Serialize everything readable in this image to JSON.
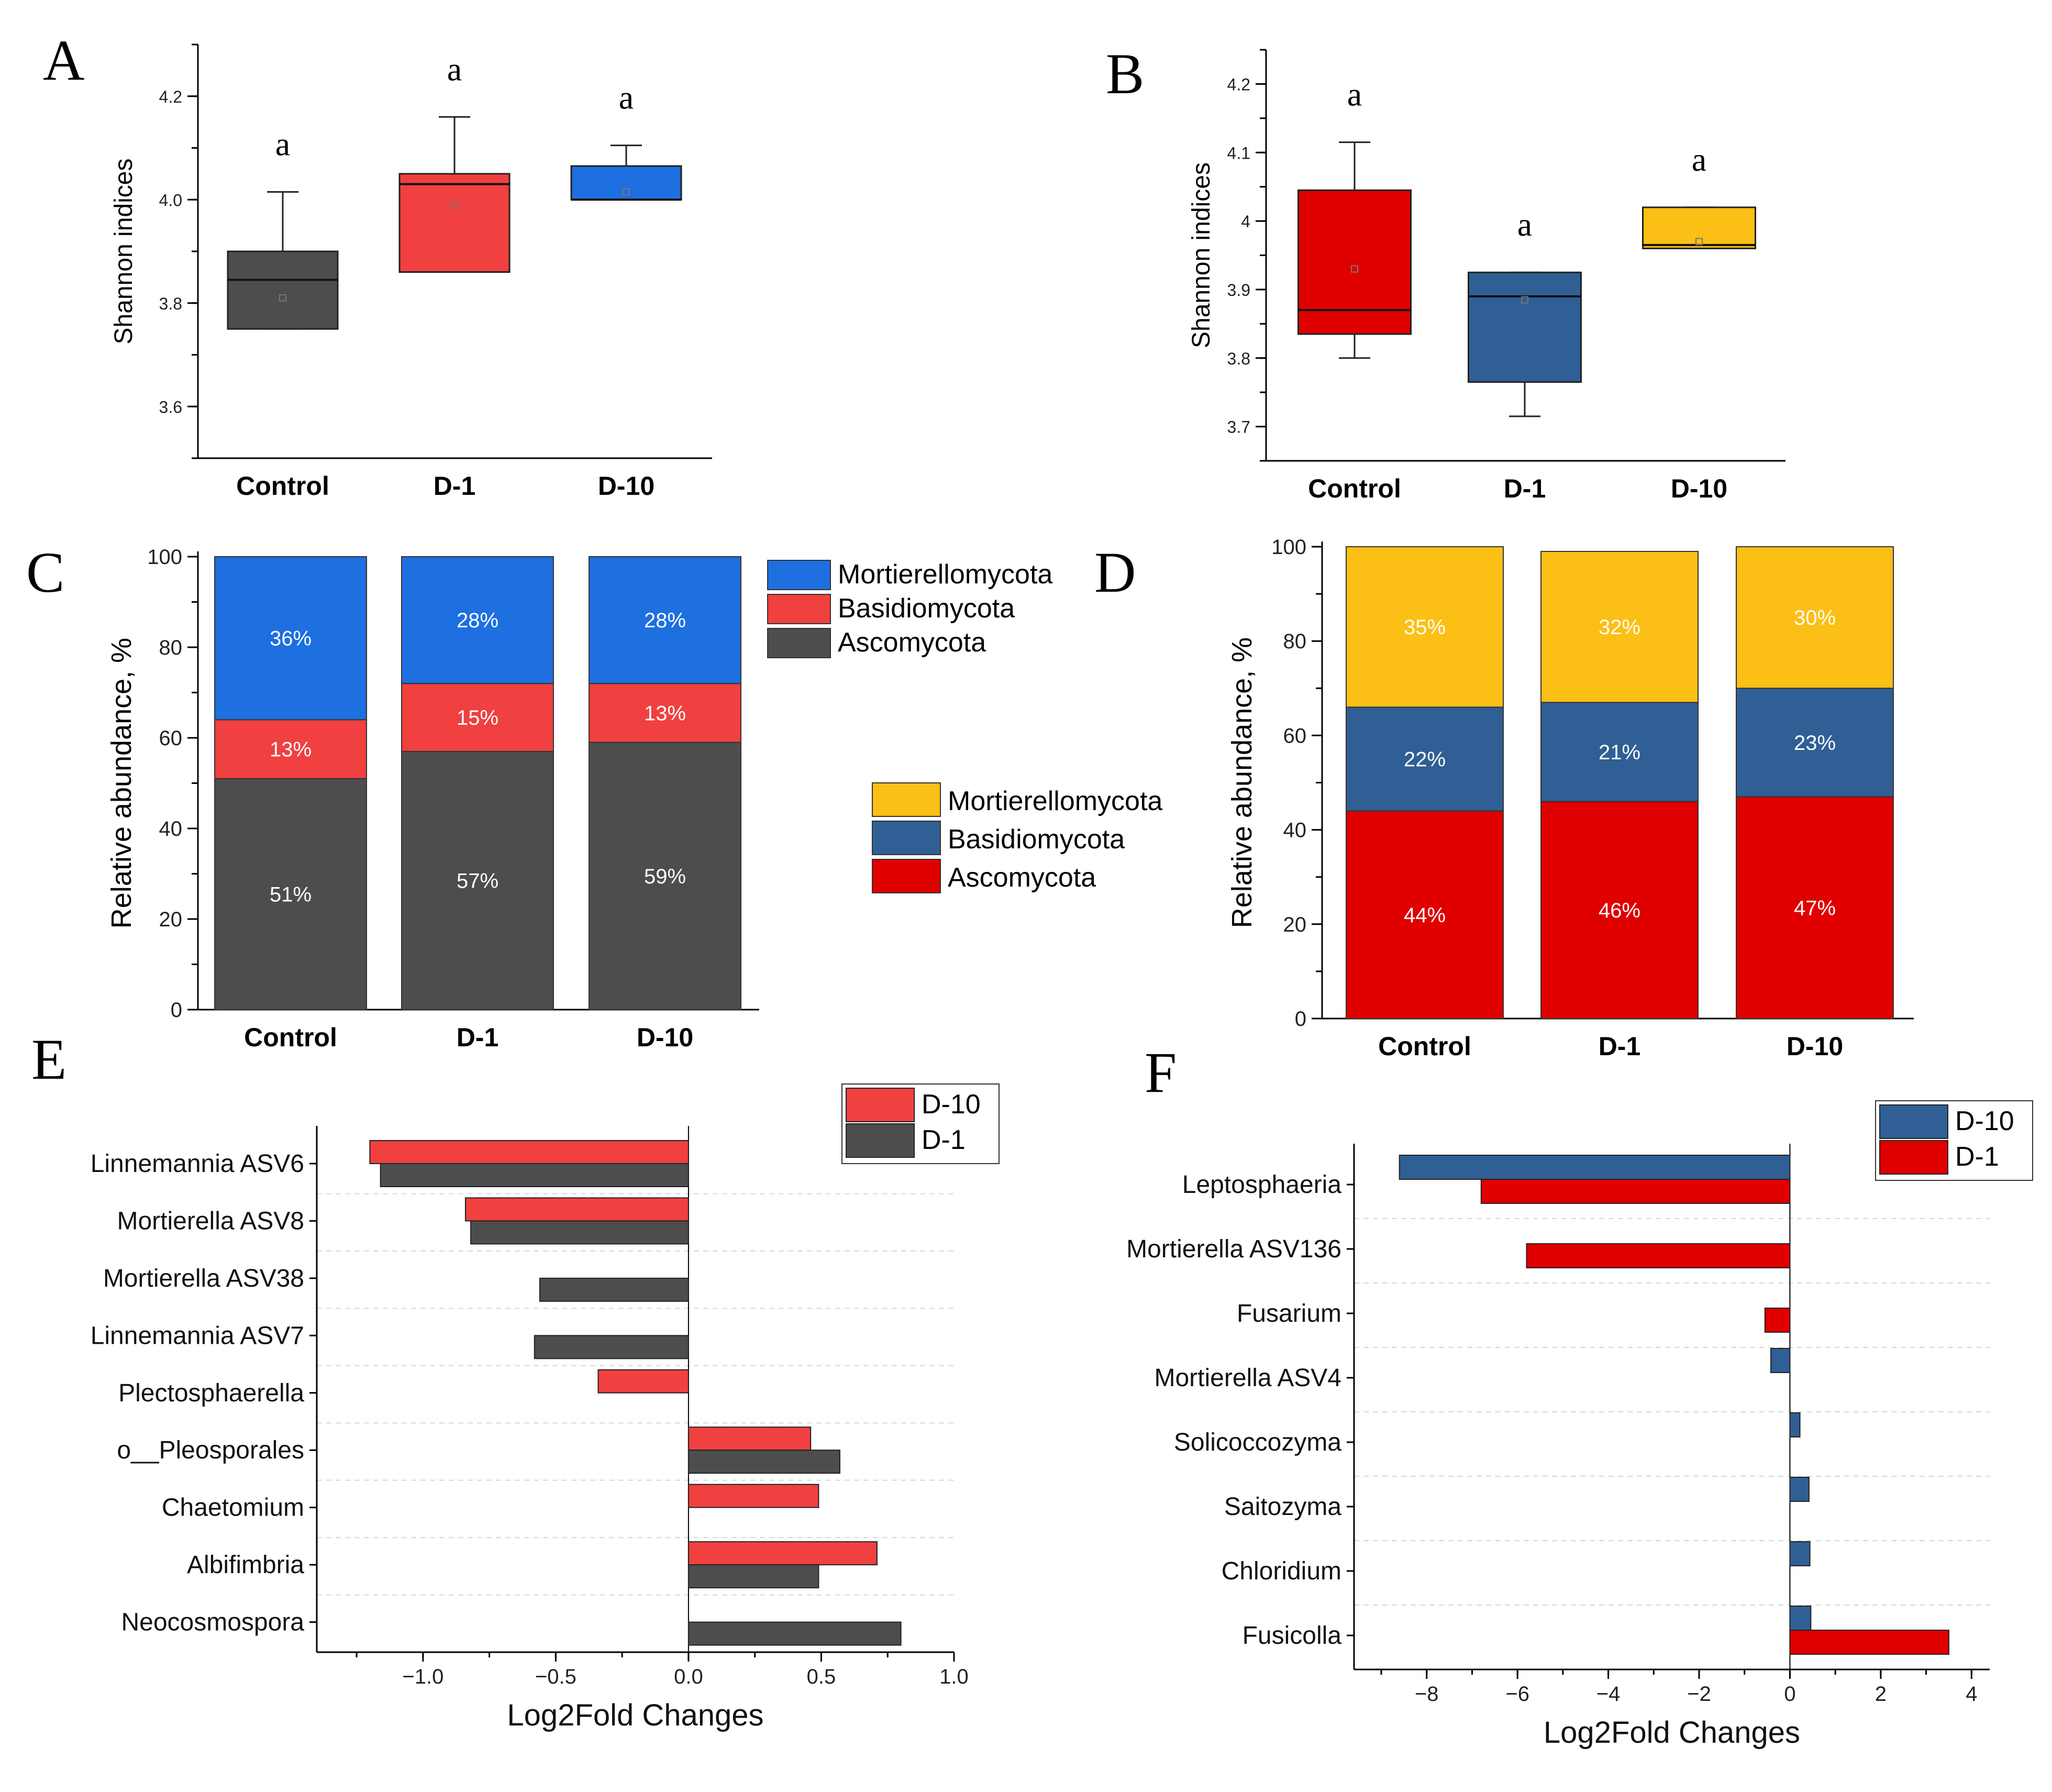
{
  "colors": {
    "dark": "#4d4d4d",
    "red_light": "#f04040",
    "blue_bright": "#1e6fe0",
    "red": "#e00000",
    "steel_blue": "#2f5f94",
    "yellow": "#fbbf16"
  },
  "panel_labels": [
    "A",
    "B",
    "C",
    "D",
    "E",
    "F"
  ],
  "chart_data": [
    {
      "panel": "A",
      "type": "box",
      "ylabel": "Shannon indices",
      "ylim": [
        3.5,
        4.3
      ],
      "yticks": [
        3.6,
        3.8,
        4.0,
        4.2
      ],
      "ytick_labels": [
        "3.6",
        "3.8",
        "4.0",
        "4.2"
      ],
      "categories": [
        "Control",
        "D-1",
        "D-10"
      ],
      "colors": [
        "#4d4d4d",
        "#f04040",
        "#1e6fe0"
      ],
      "boxes": [
        {
          "whisker_low": 3.75,
          "q1": 3.75,
          "median": 3.845,
          "q3": 3.9,
          "whisker_high": 4.015,
          "mean": 3.81
        },
        {
          "whisker_low": 3.86,
          "q1": 3.86,
          "median": 4.03,
          "q3": 4.05,
          "whisker_high": 4.16,
          "mean": 3.99
        },
        {
          "whisker_low": 4.0,
          "q1": 4.0,
          "median": 4.0,
          "q3": 4.065,
          "whisker_high": 4.105,
          "mean": 4.015
        }
      ],
      "significance": [
        "a",
        "a",
        "a"
      ]
    },
    {
      "panel": "B",
      "type": "box",
      "ylabel": "Shannon indices",
      "ylim": [
        3.65,
        4.25
      ],
      "yticks": [
        3.7,
        3.8,
        3.9,
        4.0,
        4.1,
        4.2
      ],
      "ytick_labels": [
        "3.7",
        "3.8",
        "3.9",
        "4",
        "4.1",
        "4.2"
      ],
      "categories": [
        "Control",
        "D-1",
        "D-10"
      ],
      "colors": [
        "#e00000",
        "#2f5f94",
        "#fbbf16"
      ],
      "boxes": [
        {
          "whisker_low": 3.8,
          "q1": 3.835,
          "median": 3.87,
          "q3": 4.045,
          "whisker_high": 4.115,
          "mean": 3.93
        },
        {
          "whisker_low": 3.715,
          "q1": 3.765,
          "median": 3.89,
          "q3": 3.925,
          "whisker_high": 3.925,
          "mean": 3.885
        },
        {
          "whisker_low": 3.96,
          "q1": 3.96,
          "median": 3.965,
          "q3": 4.02,
          "whisker_high": 4.02,
          "mean": 3.97
        }
      ],
      "significance": [
        "a",
        "a",
        "a"
      ]
    },
    {
      "panel": "C",
      "type": "stacked_bar",
      "ylabel": "Relative abundance, %",
      "ylim": [
        0,
        100
      ],
      "yticks": [
        0,
        20,
        40,
        60,
        80,
        100
      ],
      "categories": [
        "Control",
        "D-1",
        "D-10"
      ],
      "series": [
        {
          "name": "Ascomycota",
          "color": "#4d4d4d",
          "values": [
            51,
            57,
            59
          ],
          "labels": [
            "51%",
            "57%",
            "59%"
          ]
        },
        {
          "name": "Basidiomycota",
          "color": "#f04040",
          "values": [
            13,
            15,
            13
          ],
          "labels": [
            "13%",
            "15%",
            "13%"
          ]
        },
        {
          "name": "Mortierellomycota",
          "color": "#1e6fe0",
          "values": [
            36,
            28,
            28
          ],
          "labels": [
            "36%",
            "28%",
            "28%"
          ]
        }
      ],
      "legend": [
        "Mortierellomycota",
        "Basidiomycota",
        "Ascomycota"
      ]
    },
    {
      "panel": "D",
      "type": "stacked_bar",
      "ylabel": "Relative abundance, %",
      "ylim": [
        0,
        100
      ],
      "yticks": [
        0,
        20,
        40,
        60,
        80,
        100
      ],
      "categories": [
        "Control",
        "D-1",
        "D-10"
      ],
      "series": [
        {
          "name": "Ascomycota",
          "color": "#e00000",
          "values": [
            44,
            46,
            47
          ],
          "labels": [
            "44%",
            "46%",
            "47%"
          ]
        },
        {
          "name": "Basidiomycota",
          "color": "#2f5f94",
          "values": [
            22,
            21,
            23
          ],
          "labels": [
            "22%",
            "21%",
            "23%"
          ]
        },
        {
          "name": "Mortierellomycota",
          "color": "#fbbf16",
          "values": [
            35,
            32,
            30
          ],
          "labels": [
            "35%",
            "32%",
            "30%"
          ]
        }
      ],
      "legend": [
        "Mortierellomycota",
        "Basidiomycota",
        "Ascomycota"
      ]
    },
    {
      "panel": "E",
      "type": "hbar",
      "xlabel": "Log2Fold Changes",
      "xlim": [
        -1.4,
        1.0
      ],
      "xticks": [
        -1.0,
        -0.5,
        0.0,
        0.5,
        1.0
      ],
      "xtick_labels": [
        "−1.0",
        "−0.5",
        "0.0",
        "0.5",
        "1.0"
      ],
      "categories": [
        "Linnemannia ASV6",
        "Mortierella ASV8",
        "Mortierella ASV38",
        "Linnemannia ASV7",
        "Plectosphaerella",
        "o__Pleosporales",
        "Chaetomium",
        "Albifimbria",
        "Neocosmospora"
      ],
      "series": [
        {
          "name": "D-10",
          "color": "#f04040",
          "values": [
            -1.2,
            -0.84,
            null,
            null,
            -0.34,
            0.46,
            0.49,
            0.71,
            null
          ]
        },
        {
          "name": "D-1",
          "color": "#4d4d4d",
          "values": [
            -1.16,
            -0.82,
            -0.56,
            -0.58,
            null,
            0.57,
            null,
            0.49,
            0.8
          ]
        }
      ],
      "legend": [
        "D-10",
        "D-1"
      ]
    },
    {
      "panel": "F",
      "type": "hbar",
      "xlabel": "Log2Fold Changes",
      "xlim": [
        -9.6,
        4.4
      ],
      "xticks": [
        -8,
        -6,
        -4,
        -2,
        0,
        2,
        4
      ],
      "xtick_labels": [
        "−8",
        "−6",
        "−4",
        "−2",
        "0",
        "2",
        "4"
      ],
      "categories": [
        "Leptosphaeria",
        "Mortierella ASV136",
        "Fusarium",
        "Mortierella ASV4",
        "Solicoccozyma",
        "Saitozyma",
        "Chloridium",
        "Fusicolla"
      ],
      "series": [
        {
          "name": "D-10",
          "color": "#2f5f94",
          "values": [
            -8.6,
            null,
            null,
            -0.42,
            0.22,
            0.42,
            0.44,
            0.46
          ]
        },
        {
          "name": "D-1",
          "color": "#e00000",
          "values": [
            -6.8,
            -5.8,
            -0.55,
            null,
            null,
            null,
            null,
            3.5
          ]
        }
      ],
      "legend": [
        "D-10",
        "D-1"
      ]
    }
  ]
}
